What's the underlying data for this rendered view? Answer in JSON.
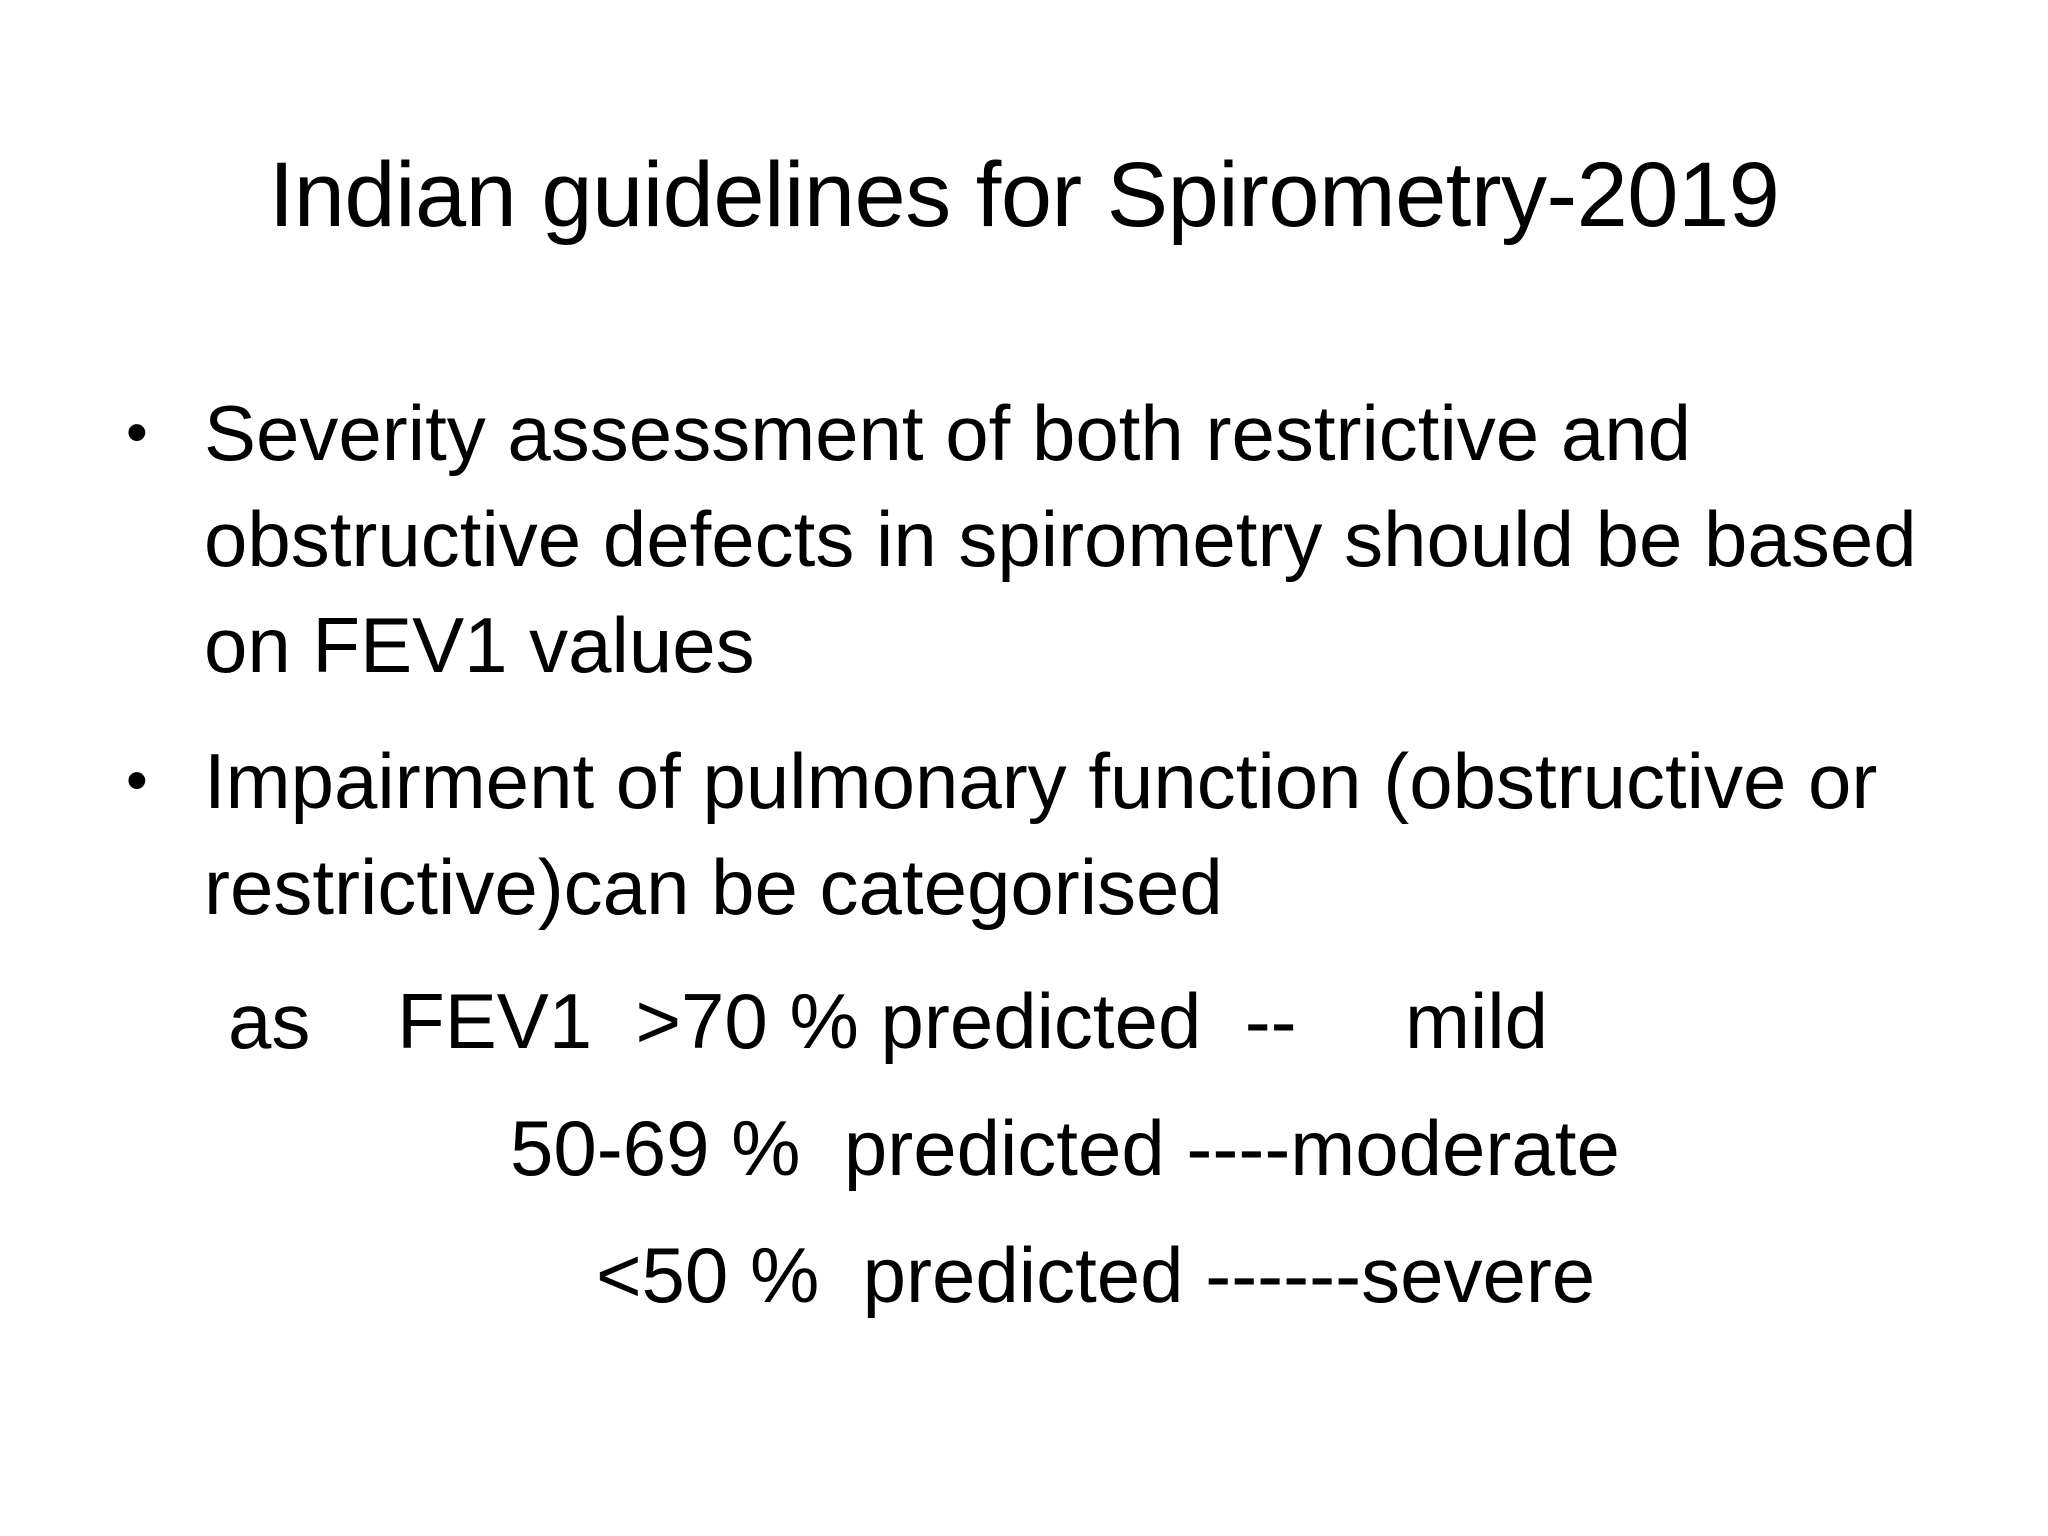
{
  "slide": {
    "title": "Indian guidelines for Spirometry-2019",
    "bullets": [
      {
        "marker": "•",
        "text": "Severity assessment of both restrictive and obstructive defects in spirometry should be based on FEV1 values"
      },
      {
        "marker": "•",
        "text": "Impairment of pulmonary function (obstructive or restrictive)can be categorised"
      }
    ],
    "categories": [
      "as    FEV1  >70 % predicted  --     mild",
      "50-69 %  predicted ----moderate",
      "<50 %  predicted ------severe"
    ]
  }
}
